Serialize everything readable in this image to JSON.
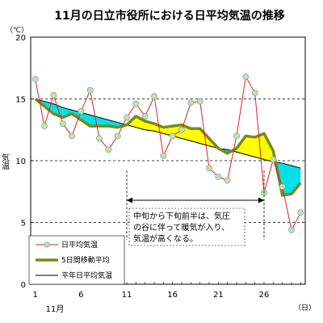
{
  "chart_data": {
    "type": "line",
    "title": "11月の日立市役所における日平均気温の推移",
    "unit": "（℃）",
    "ylabel": "気温",
    "xlabel": "11月",
    "x_unit": "（日）",
    "ylim": [
      0,
      20
    ],
    "yticks": [
      0,
      5,
      10,
      15,
      20
    ],
    "x": [
      1,
      2,
      3,
      4,
      5,
      6,
      7,
      8,
      9,
      10,
      11,
      12,
      13,
      14,
      15,
      16,
      17,
      18,
      19,
      20,
      21,
      22,
      23,
      24,
      25,
      26,
      27,
      28,
      29,
      30
    ],
    "xtick_labels": [
      "1",
      "6",
      "11",
      "16",
      "21",
      "26"
    ],
    "grid": "horizontal dashed at 5, 10, 15",
    "legend_position": "bottom-left",
    "series": [
      {
        "name": "日平均気温",
        "style": "red line with light green markers",
        "color": "#e02020",
        "marker_color": "#b8e6b0",
        "values": [
          16.6,
          12.8,
          15.3,
          13.0,
          12.0,
          14.0,
          15.7,
          11.8,
          10.9,
          12.0,
          13.5,
          14.6,
          13.6,
          15.2,
          10.4,
          12.0,
          12.5,
          14.7,
          14.8,
          9.4,
          8.7,
          8.4,
          12.0,
          16.8,
          15.5,
          7.4,
          10.1,
          7.9,
          4.4,
          5.8
        ]
      },
      {
        "name": "5日間移動平均",
        "style": "thick olive line",
        "color": "#7a8a1a",
        "values": [
          15.0,
          14.4,
          13.8,
          13.5,
          13.8,
          13.3,
          12.8,
          12.8,
          12.8,
          12.7,
          12.9,
          13.6,
          13.2,
          13.0,
          12.7,
          12.8,
          12.9,
          12.6,
          12.6,
          11.8,
          11.0,
          10.6,
          11.0,
          12.0,
          11.9,
          12.2,
          10.8,
          7.2,
          7.3,
          8.2
        ]
      },
      {
        "name": "平年日平均気温",
        "style": "thin black line",
        "color": "#000000",
        "values": [
          15.0,
          14.8,
          14.6,
          14.3,
          14.1,
          13.9,
          13.7,
          13.5,
          13.3,
          13.1,
          12.9,
          12.7,
          12.5,
          12.4,
          12.2,
          12.0,
          11.8,
          11.6,
          11.4,
          11.2,
          11.0,
          10.9,
          10.7,
          10.5,
          10.3,
          10.1,
          9.9,
          9.8,
          9.6,
          9.4
        ]
      }
    ],
    "fill_colors": {
      "above_normal": "#ffff00",
      "below_normal": "#00e0e8"
    },
    "annotation": {
      "lines": [
        "中旬から下旬前半は、気圧",
        "の谷に伴って暖気が入り、",
        "気温が高くなる。"
      ],
      "span_start_day": 11,
      "span_end_day": 26
    }
  }
}
